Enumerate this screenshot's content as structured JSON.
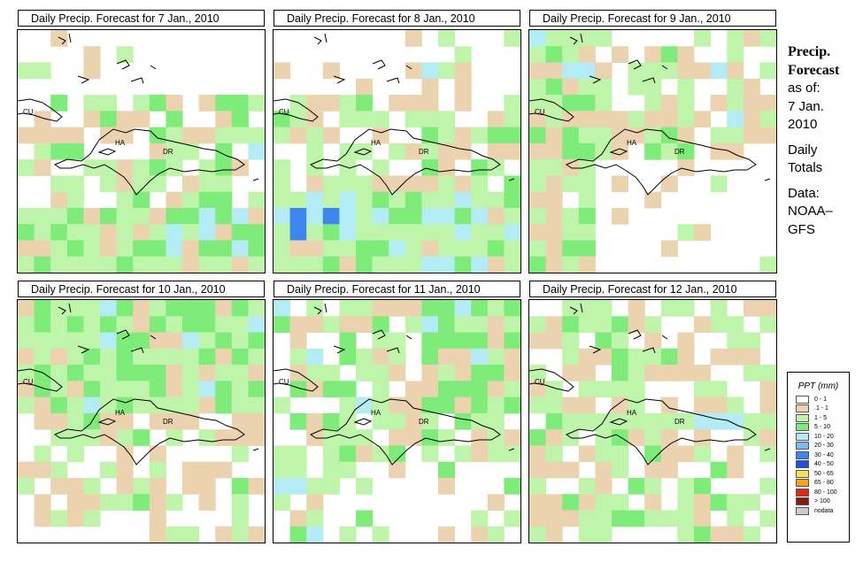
{
  "panels": [
    {
      "title": "Daily Precip. Forecast for  7 Jan., 2010",
      "seed": 11,
      "bias": "south_green"
    },
    {
      "title": "Daily Precip. Forecast for  8 Jan., 2010",
      "seed": 23,
      "bias": "south_green_blue"
    },
    {
      "title": "Daily Precip. Forecast for  9 Jan., 2010",
      "seed": 37,
      "bias": "west_green"
    },
    {
      "title": "Daily Precip. Forecast for  10 Jan., 2010",
      "seed": 41,
      "bias": "north_green"
    },
    {
      "title": "Daily Precip. Forecast for  11 Jan., 2010",
      "seed": 53,
      "bias": "mixed_green"
    },
    {
      "title": "Daily Precip. Forecast for  12 Jan., 2010",
      "seed": 67,
      "bias": "light_mixed"
    }
  ],
  "map_labels": {
    "cu": "CU",
    "ha": "HA",
    "dr": "DR"
  },
  "side": {
    "heading1": "Precip.",
    "heading2": "Forecast",
    "line1": "as of:",
    "line2": "7 Jan.",
    "line3": "2010",
    "line4": "Daily",
    "line5": "Totals",
    "line6": "Data:",
    "line7": "NOAA–",
    "line8": "GFS"
  },
  "legend": {
    "title": "PPT (mm)",
    "items": [
      {
        "label": "0 - 1",
        "color": "#ffffff"
      },
      {
        "label": ".1 - 1",
        "color": "#ecd3b0"
      },
      {
        "label": "1 - 5",
        "color": "#bff5aa"
      },
      {
        "label": "5 - 10",
        "color": "#7eec78"
      },
      {
        "label": "10 - 20",
        "color": "#b3ecf5"
      },
      {
        "label": "20 - 30",
        "color": "#7eb9f3"
      },
      {
        "label": "30 - 40",
        "color": "#3d86ef"
      },
      {
        "label": "40 - 50",
        "color": "#1f4fe0"
      },
      {
        "label": "50 - 65",
        "color": "#f8df5a"
      },
      {
        "label": "65 - 80",
        "color": "#f7a21a"
      },
      {
        "label": "80 - 100",
        "color": "#e2261a"
      },
      {
        "label": "> 100",
        "color": "#8a1a10"
      },
      {
        "label": "nodata",
        "color": "#cccccc"
      }
    ]
  }
}
